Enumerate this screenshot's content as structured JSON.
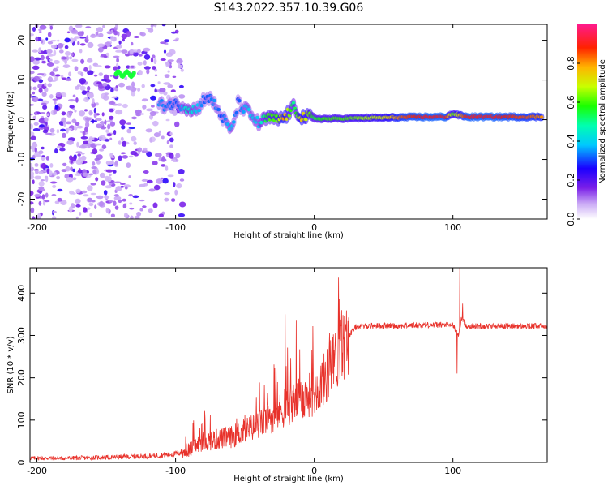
{
  "chart_data": [
    {
      "type": "heatmap",
      "title": "S143.2022.357.10.39.G06",
      "xlabel": "Height of straight line (km)",
      "ylabel": "Frequency (Hz)",
      "xlim": [
        -205,
        168
      ],
      "ylim": [
        -25,
        24
      ],
      "xticks": [
        -200,
        -100,
        0,
        100
      ],
      "yticks": [
        -20,
        -10,
        0,
        10,
        20
      ],
      "colorbar": {
        "label": "Normalized spectral amplitude",
        "range": [
          0.0,
          1.0
        ],
        "ticks": [
          0.0,
          0.2,
          0.4,
          0.6,
          0.8
        ]
      },
      "ridge": [
        {
          "x": -112,
          "y": 3.6,
          "a": 0.35
        },
        {
          "x": -98,
          "y": 4.0,
          "a": 0.3
        },
        {
          "x": -92,
          "y": 3.2,
          "a": 0.45
        },
        {
          "x": -85,
          "y": 2.4,
          "a": 0.4
        },
        {
          "x": -78,
          "y": 6.0,
          "a": 0.3
        },
        {
          "x": -72,
          "y": 4.0,
          "a": 0.35
        },
        {
          "x": -67,
          "y": 1.0,
          "a": 0.3
        },
        {
          "x": -60,
          "y": -3.0,
          "a": 0.4
        },
        {
          "x": -55,
          "y": 4.0,
          "a": 0.3
        },
        {
          "x": -48,
          "y": 2.0,
          "a": 0.4
        },
        {
          "x": -40,
          "y": -1.0,
          "a": 0.4
        },
        {
          "x": -33,
          "y": 0.5,
          "a": 0.6
        },
        {
          "x": -27,
          "y": 0.0,
          "a": 0.6
        },
        {
          "x": -22,
          "y": 0.4,
          "a": 0.8
        },
        {
          "x": -15,
          "y": 3.0,
          "a": 0.5
        },
        {
          "x": -9,
          "y": 0.8,
          "a": 0.75
        },
        {
          "x": 0,
          "y": 0.3,
          "a": 0.55
        },
        {
          "x": 10,
          "y": 0.2,
          "a": 0.6
        },
        {
          "x": 20,
          "y": 0.3,
          "a": 0.6
        },
        {
          "x": 35,
          "y": 0.4,
          "a": 0.65
        },
        {
          "x": 50,
          "y": 0.5,
          "a": 0.7
        },
        {
          "x": 65,
          "y": 0.6,
          "a": 0.85
        },
        {
          "x": 80,
          "y": 0.7,
          "a": 0.9
        },
        {
          "x": 95,
          "y": 0.7,
          "a": 0.9
        },
        {
          "x": 100,
          "y": 1.5,
          "a": 0.6
        },
        {
          "x": 110,
          "y": 0.7,
          "a": 0.9
        },
        {
          "x": 130,
          "y": 0.7,
          "a": 0.9
        },
        {
          "x": 150,
          "y": 0.7,
          "a": 0.85
        },
        {
          "x": 165,
          "y": 0.7,
          "a": 0.8
        }
      ],
      "tone": {
        "x": -136,
        "y": 11.5,
        "a": 0.55
      }
    },
    {
      "type": "line",
      "xlabel": "Height of straight line (km)",
      "ylabel": "SNR (10 * v/v)",
      "xlim": [
        -205,
        168
      ],
      "ylim": [
        0,
        460
      ],
      "xticks": [
        -200,
        -100,
        0,
        100
      ],
      "yticks": [
        0,
        100,
        200,
        300,
        400
      ],
      "color": "#e8322b",
      "series": [
        {
          "x": [
            -205,
            -180,
            -150,
            -120,
            -100,
            -90,
            -80,
            -70,
            -60,
            -50,
            -40,
            -30,
            -20,
            -10,
            0,
            10,
            20,
            25,
            30,
            40,
            60,
            80,
            100,
            104,
            106,
            110,
            130,
            150,
            168
          ],
          "values": [
            10,
            10,
            12,
            15,
            20,
            30,
            50,
            55,
            60,
            75,
            90,
            110,
            130,
            150,
            165,
            210,
            270,
            300,
            320,
            323,
            323,
            325,
            325,
            300,
            340,
            322,
            322,
            322,
            322
          ]
        }
      ],
      "spikes": [
        {
          "x": -21,
          "value": 350
        },
        {
          "x": -13,
          "value": 335
        },
        {
          "x": -1,
          "value": 322
        },
        {
          "x": 105,
          "value": 460
        },
        {
          "x": 103,
          "value": 210
        },
        {
          "x": 107,
          "value": 375
        }
      ]
    }
  ]
}
